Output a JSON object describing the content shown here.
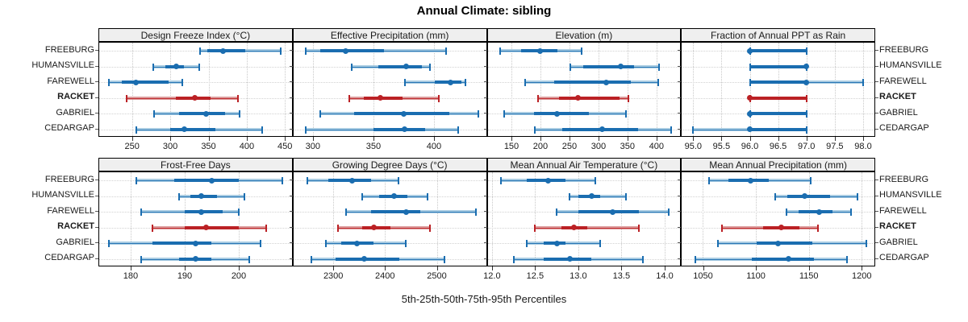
{
  "title": "Annual Climate: sibling",
  "caption": "5th-25th-50th-75th-95th Percentiles",
  "stations": [
    {
      "label": "FREEBURG",
      "bold": false
    },
    {
      "label": "HUMANSVILLE",
      "bold": false
    },
    {
      "label": "FAREWELL",
      "bold": false
    },
    {
      "label": "RACKET",
      "bold": true
    },
    {
      "label": "GABRIEL",
      "bold": false
    },
    {
      "label": "CEDARGAP",
      "bold": false
    }
  ],
  "highlight_station": "RACKET",
  "colors": {
    "blue_dark": "#1a6db0",
    "blue_light": "#a9cce2",
    "red_dark": "#bb2125",
    "red_light": "#dc9c9c",
    "strip_bg": "#efefef",
    "panel_border": "#000000",
    "grid": "#c9c9c9",
    "text": "#1a1a1a"
  },
  "chart_data": {
    "type": "scatter",
    "subtype": "percentile-interval-dotplot",
    "layout": "2 rows x 4 columns trellis, independent x scales, shared station y-axis",
    "percentile_labels": [
      "5th",
      "25th",
      "50th",
      "75th",
      "95th"
    ],
    "rows_top_to_bottom": [
      "FREEBURG",
      "HUMANSVILLE",
      "FAREWELL",
      "RACKET",
      "GABRIEL",
      "CEDARGAP"
    ],
    "grid": "dotted vertical lines at x ticks, dotted horizontal line per station row",
    "panels": [
      {
        "title": "Design Freeze Index (°C)",
        "trellis_row": 1,
        "ticks": [
          250,
          300,
          350,
          400,
          450
        ],
        "tick_labels": [
          "250",
          "300",
          "350",
          "400",
          "450"
        ],
        "xlim": [
          207,
          459
        ],
        "values": {
          "FREEBURG": [
            339,
            348,
            369,
            398,
            444
          ],
          "HUMANSVILLE": [
            278,
            294,
            308,
            318,
            338
          ],
          "FAREWELL": [
            220,
            236,
            255,
            298,
            316
          ],
          "RACKET": [
            243,
            307,
            332,
            353,
            389
          ],
          "GABRIEL": [
            279,
            311,
            347,
            372,
            391
          ],
          "CEDARGAP": [
            255,
            300,
            318,
            359,
            420
          ]
        }
      },
      {
        "title": "Effective Precipitation (mm)",
        "trellis_row": 1,
        "ticks": [
          300,
          350,
          400
        ],
        "tick_labels": [
          "300",
          "350",
          "400"
        ],
        "xlim": [
          284,
          443
        ],
        "values": {
          "FREEBURG": [
            294,
            306,
            327,
            359,
            410
          ],
          "HUMANSVILLE": [
            332,
            354,
            377,
            390,
            397
          ],
          "FAREWELL": [
            376,
            401,
            414,
            423,
            426
          ],
          "RACKET": [
            330,
            342,
            356,
            374,
            404
          ],
          "GABRIEL": [
            306,
            334,
            375,
            413,
            437
          ],
          "CEDARGAP": [
            294,
            350,
            376,
            393,
            420
          ]
        }
      },
      {
        "title": "Elevation (m)",
        "trellis_row": 1,
        "ticks": [
          150,
          200,
          250,
          300,
          350,
          400
        ],
        "tick_labels": [
          "150",
          "200",
          "250",
          "300",
          "350",
          "400"
        ],
        "xlim": [
          109,
          441
        ],
        "values": {
          "FREEBURG": [
            131,
            166,
            199,
            229,
            271
          ],
          "HUMANSVILLE": [
            251,
            274,
            338,
            361,
            405
          ],
          "FAREWELL": [
            173,
            223,
            313,
            356,
            403
          ],
          "RACKET": [
            196,
            232,
            264,
            336,
            351
          ],
          "GABRIEL": [
            138,
            189,
            229,
            283,
            347
          ],
          "CEDARGAP": [
            190,
            237,
            306,
            368,
            425
          ]
        }
      },
      {
        "title": "Fraction of Annual PPT as Rain",
        "trellis_row": 1,
        "ticks": [
          95.0,
          95.5,
          96.0,
          96.5,
          97.0,
          97.5,
          98.0
        ],
        "tick_labels": [
          "95.0",
          "95.5",
          "96.0",
          "96.5",
          "97.0",
          "97.5",
          "98.0"
        ],
        "xlim": [
          94.8,
          98.2
        ],
        "values": {
          "FREEBURG": [
            96,
            96,
            96,
            97,
            97
          ],
          "HUMANSVILLE": [
            96,
            96,
            97,
            97,
            97
          ],
          "FAREWELL": [
            96,
            96,
            97,
            97,
            98
          ],
          "RACKET": [
            96,
            96,
            96,
            97,
            97
          ],
          "GABRIEL": [
            96,
            96,
            96,
            97,
            97
          ],
          "CEDARGAP": [
            95,
            96,
            96,
            97,
            97
          ]
        }
      },
      {
        "title": "Frost-Free Days",
        "trellis_row": 2,
        "ticks": [
          180,
          190,
          200
        ],
        "tick_labels": [
          "180",
          "190",
          "200"
        ],
        "xlim": [
          174.2,
          209.8
        ],
        "values": {
          "FREEBURG": [
            181,
            188,
            195,
            200,
            208
          ],
          "HUMANSVILLE": [
            189,
            191,
            193,
            196,
            201
          ],
          "FAREWELL": [
            182,
            190,
            193,
            197,
            200
          ],
          "RACKET": [
            184,
            190,
            194,
            200,
            205
          ],
          "GABRIEL": [
            176,
            184,
            192,
            195,
            204
          ],
          "CEDARGAP": [
            182,
            189,
            192,
            195,
            202
          ]
        }
      },
      {
        "title": "Growing Degree Days (°C)",
        "trellis_row": 2,
        "ticks": [
          2300,
          2400,
          2500
        ],
        "tick_labels": [
          "2300",
          "2400",
          "2500"
        ],
        "xlim": [
          2223,
          2595
        ],
        "values": {
          "FREEBURG": [
            2250,
            2290,
            2337,
            2373,
            2426
          ],
          "HUMANSVILLE": [
            2356,
            2388,
            2418,
            2443,
            2482
          ],
          "FAREWELL": [
            2324,
            2373,
            2441,
            2468,
            2575
          ],
          "RACKET": [
            2309,
            2356,
            2378,
            2410,
            2487
          ],
          "GABRIEL": [
            2285,
            2316,
            2346,
            2378,
            2440
          ],
          "CEDARGAP": [
            2257,
            2305,
            2360,
            2428,
            2515
          ]
        }
      },
      {
        "title": "Mean Annual Air Temperature (°C)",
        "trellis_row": 2,
        "ticks": [
          12.0,
          12.5,
          13.0,
          13.5,
          14.0
        ],
        "tick_labels": [
          "12.0",
          "12.5",
          "13.0",
          "13.5",
          "14.0"
        ],
        "xlim": [
          11.95,
          14.18
        ],
        "values": {
          "FREEBURG": [
            12.1,
            12.4,
            12.65,
            12.85,
            13.2
          ],
          "HUMANSVILLE": [
            12.9,
            13.0,
            13.15,
            13.25,
            13.55
          ],
          "FAREWELL": [
            12.75,
            13.0,
            13.4,
            13.7,
            14.05
          ],
          "RACKET": [
            12.5,
            12.8,
            12.95,
            13.1,
            13.7
          ],
          "GABRIEL": [
            12.4,
            12.6,
            12.75,
            12.85,
            13.25
          ],
          "CEDARGAP": [
            12.25,
            12.6,
            12.9,
            13.15,
            13.75
          ]
        }
      },
      {
        "title": "Mean Annual Precipitation (mm)",
        "trellis_row": 2,
        "ticks": [
          1050,
          1100,
          1150,
          1200
        ],
        "tick_labels": [
          "1050",
          "1100",
          "1150",
          "1200"
        ],
        "xlim": [
          1030,
          1212
        ],
        "values": {
          "FREEBURG": [
            1056,
            1074,
            1095,
            1112,
            1152
          ],
          "HUMANSVILLE": [
            1118,
            1130,
            1146,
            1170,
            1196
          ],
          "FAREWELL": [
            1129,
            1140,
            1160,
            1172,
            1190
          ],
          "RACKET": [
            1068,
            1107,
            1124,
            1141,
            1159
          ],
          "GABRIEL": [
            1064,
            1101,
            1121,
            1153,
            1204
          ],
          "CEDARGAP": [
            1043,
            1096,
            1131,
            1155,
            1186
          ]
        }
      }
    ]
  }
}
